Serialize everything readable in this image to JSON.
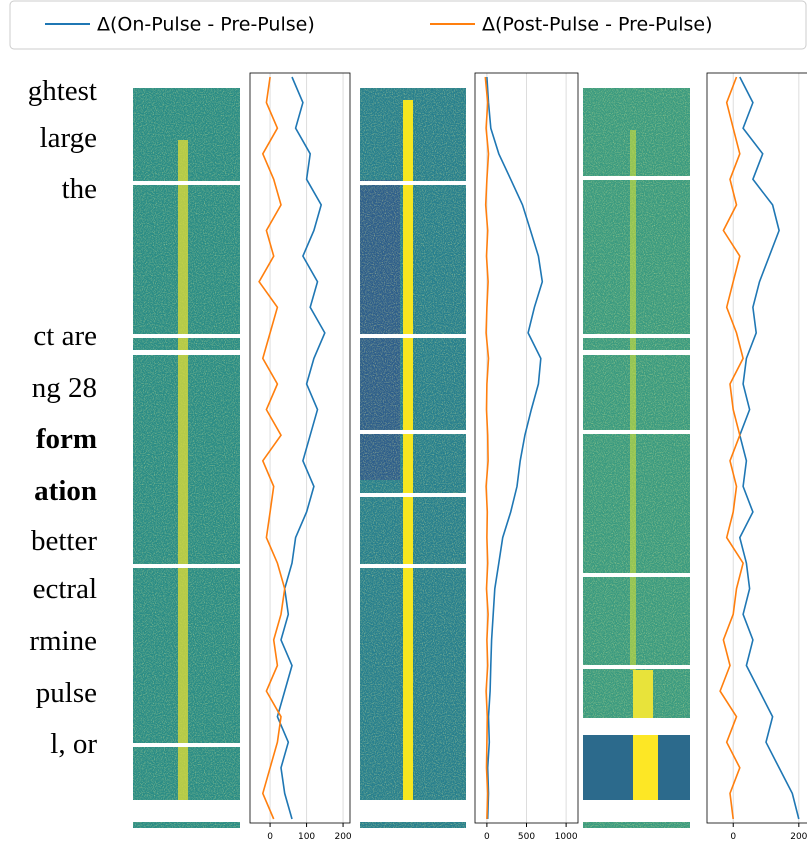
{
  "legend": {
    "entries": [
      {
        "name": "Δ(On-Pulse - Pre-Pulse)",
        "color": "#1f77b4"
      },
      {
        "name": "Δ(Post-Pulse - Pre-Pulse)",
        "color": "#ff7f0e"
      }
    ]
  },
  "text_lines": [
    {
      "text": "ghtest",
      "bold": false
    },
    {
      "text": "large",
      "bold": false
    },
    {
      "text": "the",
      "bold": false
    },
    {
      "text": "ct are",
      "bold": false
    },
    {
      "text": "ng 28",
      "bold": false
    },
    {
      "text": "form",
      "bold": true
    },
    {
      "text": "ation",
      "bold": true
    },
    {
      "text": "better",
      "bold": false
    },
    {
      "text": "ectral",
      "bold": false
    },
    {
      "text": "rmine",
      "bold": false
    },
    {
      "text": "pulse",
      "bold": false
    },
    {
      "text": "l,    or",
      "bold": false
    }
  ],
  "chart_data": [
    {
      "type": "line",
      "grid": true,
      "xlim": [
        -55,
        219
      ],
      "xticks": [
        0,
        100,
        200
      ],
      "series": [
        {
          "color": "#1f77b4",
          "values": [
            60,
            90,
            70,
            110,
            100,
            140,
            120,
            90,
            130,
            110,
            150,
            120,
            100,
            130,
            110,
            90,
            120,
            100,
            70,
            60,
            40,
            50,
            30,
            60,
            40,
            20,
            50,
            30,
            40,
            60
          ]
        },
        {
          "color": "#ff7f0e",
          "values": [
            0,
            -10,
            20,
            -20,
            10,
            30,
            -10,
            10,
            -30,
            20,
            0,
            -20,
            20,
            -10,
            30,
            -20,
            10,
            0,
            -10,
            20,
            40,
            30,
            10,
            20,
            -10,
            30,
            20,
            0,
            -20,
            10
          ]
        }
      ]
    },
    {
      "type": "line",
      "grid": true,
      "xlim": [
        -150,
        1150
      ],
      "xticks": [
        0,
        500,
        1000
      ],
      "series": [
        {
          "color": "#1f77b4",
          "values": [
            0,
            20,
            50,
            150,
            300,
            450,
            550,
            650,
            700,
            600,
            520,
            680,
            650,
            560,
            480,
            420,
            380,
            300,
            200,
            150,
            100,
            80,
            60,
            50,
            40,
            20,
            30,
            10,
            20,
            10
          ]
        },
        {
          "color": "#ff7f0e",
          "values": [
            -20,
            10,
            -10,
            20,
            0,
            -15,
            10,
            -5,
            15,
            0,
            -10,
            20,
            0,
            -5,
            10,
            15,
            -10,
            5,
            0,
            10,
            -5,
            15,
            0,
            10,
            -10,
            5,
            0,
            -5,
            10,
            0
          ]
        }
      ]
    },
    {
      "type": "line",
      "grid": true,
      "xlim": [
        -80,
        228
      ],
      "xticks": [
        0,
        200
      ],
      "series": [
        {
          "color": "#1f77b4",
          "values": [
            20,
            60,
            30,
            90,
            60,
            120,
            140,
            110,
            80,
            60,
            70,
            40,
            30,
            50,
            20,
            40,
            30,
            60,
            20,
            40,
            50,
            30,
            60,
            40,
            80,
            120,
            100,
            140,
            180,
            200
          ]
        },
        {
          "color": "#ff7f0e",
          "values": [
            10,
            -20,
            0,
            20,
            -10,
            10,
            -30,
            20,
            0,
            -20,
            10,
            30,
            -10,
            0,
            20,
            -10,
            10,
            0,
            -20,
            30,
            10,
            0,
            -30,
            -10,
            -40,
            10,
            -20,
            20,
            -10,
            0
          ]
        }
      ]
    }
  ]
}
